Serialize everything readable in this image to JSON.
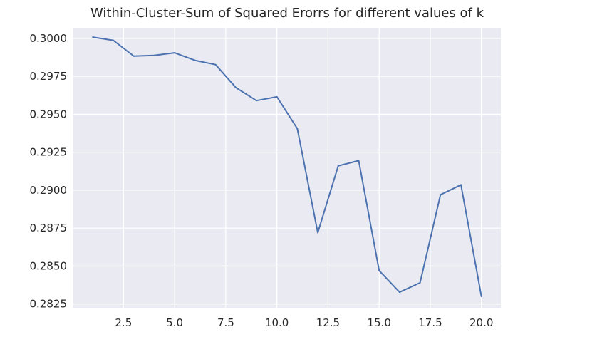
{
  "chart_data": {
    "type": "line",
    "title": "Within-Cluster-Sum of Squared Erorrs for different values of k",
    "xlabel": "",
    "ylabel": "",
    "x": [
      1,
      2,
      3,
      4,
      5,
      6,
      7,
      8,
      9,
      10,
      11,
      12,
      13,
      14,
      15,
      16,
      17,
      18,
      19,
      20
    ],
    "series": [
      {
        "values": [
          0.30008,
          0.29987,
          0.29883,
          0.29888,
          0.29905,
          0.29855,
          0.29827,
          0.29675,
          0.2959,
          0.29615,
          0.29405,
          0.2872,
          0.2916,
          0.29195,
          0.2847,
          0.28328,
          0.2839,
          0.2897,
          0.29035,
          0.283
        ],
        "color": "#4c72b0"
      }
    ],
    "xlim": [
      0.05,
      20.95
    ],
    "ylim": [
      0.28225,
      0.30065
    ],
    "xticks": [
      2.5,
      5.0,
      7.5,
      10.0,
      12.5,
      15.0,
      17.5,
      20.0
    ],
    "xtick_labels": [
      "2.5",
      "5.0",
      "7.5",
      "10.0",
      "12.5",
      "15.0",
      "17.5",
      "20.0"
    ],
    "yticks": [
      0.2825,
      0.285,
      0.2875,
      0.29,
      0.2925,
      0.295,
      0.2975,
      0.3
    ],
    "ytick_labels": [
      "0.2825",
      "0.2850",
      "0.2875",
      "0.2900",
      "0.2925",
      "0.2950",
      "0.2975",
      "0.3000"
    ],
    "grid": true,
    "background_color": "#eaeaf2",
    "grid_color": "#ffffff"
  }
}
